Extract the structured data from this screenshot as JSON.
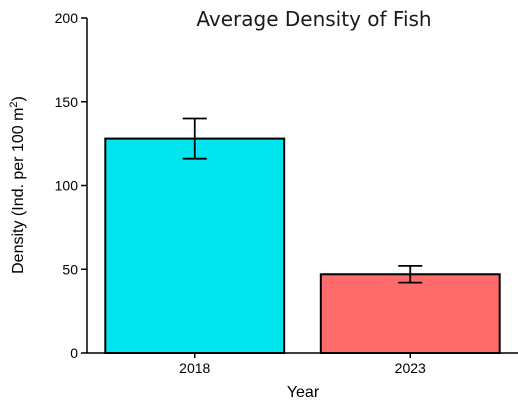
{
  "chart_data": {
    "type": "bar",
    "title": "Average Density of Fish",
    "xlabel": "Year",
    "ylabel_main": "Density (Ind. per 100 m",
    "ylabel_sup": "2",
    "ylabel_end": ")",
    "categories": [
      "2018",
      "2023"
    ],
    "values": [
      128,
      47
    ],
    "errors": [
      [
        116,
        140
      ],
      [
        42,
        52
      ]
    ],
    "colors": [
      "#00E5EE",
      "#FF6B6B"
    ],
    "ylim": [
      0,
      200
    ],
    "yticks": [
      0,
      50,
      100,
      150,
      200
    ],
    "grid": false
  }
}
